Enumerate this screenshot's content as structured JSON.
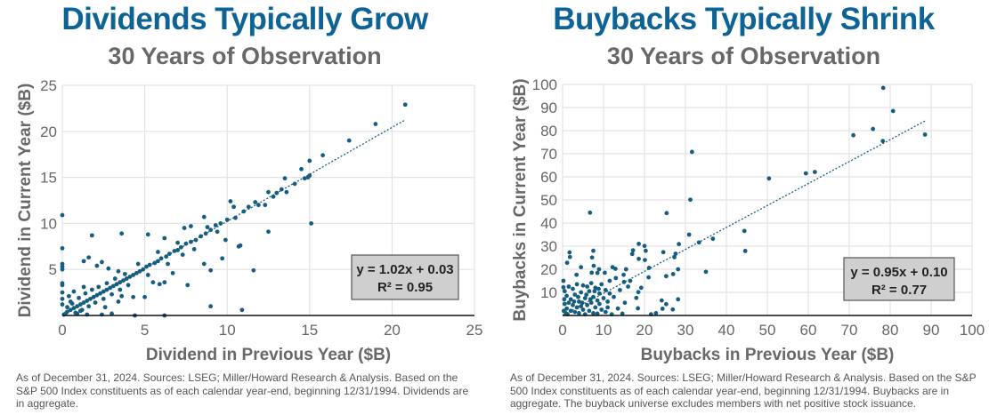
{
  "chart_data": [
    {
      "type": "scatter",
      "title": "Dividends Typically Grow",
      "subtitle": "30 Years of Observation",
      "xlabel": "Dividend in Previous Year ($B)",
      "ylabel": "Dividend in Current Year ($B)",
      "xlim": [
        0,
        25
      ],
      "ylim": [
        0,
        25
      ],
      "xticks": [
        "0",
        "5",
        "10",
        "15",
        "20",
        "25"
      ],
      "yticks": [
        "5",
        "10",
        "15",
        "20",
        "25"
      ],
      "grid": true,
      "marker_color": "#165e80",
      "trendline": {
        "slope": 1.02,
        "intercept": 0.03,
        "x_range": [
          0,
          20.8
        ],
        "style": "dotted"
      },
      "equation_label": "y = 1.02x + 0.03",
      "r2_label": "R² = 0.95",
      "points": [
        [
          20.8,
          22.9
        ],
        [
          19.0,
          20.8
        ],
        [
          17.4,
          19.0
        ],
        [
          15.8,
          17.4
        ],
        [
          15.0,
          16.8
        ],
        [
          14.5,
          15.9
        ],
        [
          15.1,
          10.0
        ],
        [
          12.5,
          9.1
        ],
        [
          11.6,
          4.9
        ],
        [
          10.9,
          0.6
        ],
        [
          9.0,
          1.0
        ],
        [
          9.0,
          4.9
        ],
        [
          8.6,
          5.6
        ],
        [
          9.7,
          6.2
        ],
        [
          10.7,
          7.5
        ],
        [
          10.8,
          7.6
        ],
        [
          9.9,
          8.2
        ],
        [
          8.6,
          10.7
        ],
        [
          10.2,
          12.4
        ],
        [
          10.4,
          11.8
        ],
        [
          0,
          10.9
        ],
        [
          0,
          7.3
        ],
        [
          0,
          5.6
        ],
        [
          0,
          5.3
        ],
        [
          0,
          5.0
        ],
        [
          0,
          3.5
        ],
        [
          0,
          3.3
        ],
        [
          0,
          2.5
        ],
        [
          0,
          1.8
        ],
        [
          0,
          1.2
        ],
        [
          1.8,
          8.7
        ],
        [
          3.6,
          8.9
        ],
        [
          5.2,
          8.8
        ],
        [
          6.2,
          8.4
        ],
        [
          1.6,
          6.3
        ],
        [
          1.3,
          5.9
        ],
        [
          2.4,
          5.8
        ],
        [
          2.1,
          5.4
        ],
        [
          2.8,
          5.1
        ],
        [
          3.4,
          4.8
        ],
        [
          7.6,
          3.3
        ],
        [
          6.7,
          4.6
        ],
        [
          4.4,
          0.0
        ],
        [
          6.2,
          0.0
        ],
        [
          3.0,
          0.2
        ],
        [
          2.4,
          0.1
        ],
        [
          1.5,
          0.1
        ],
        [
          4.3,
          2.0
        ],
        [
          5.0,
          2.0
        ],
        [
          5.5,
          3.6
        ],
        [
          5.9,
          3.4
        ],
        [
          6.2,
          3.6
        ],
        [
          7.8,
          9.7
        ],
        [
          7.4,
          9.5
        ],
        [
          11.7,
          12.3
        ],
        [
          12.3,
          12.0
        ],
        [
          12.5,
          13.4
        ],
        [
          13.3,
          13.7
        ],
        [
          13.5,
          14.9
        ],
        [
          13.6,
          13.4
        ],
        [
          14.1,
          14.3
        ],
        [
          14.7,
          14.9
        ],
        [
          15.0,
          15.2
        ],
        [
          14.9,
          15.0
        ],
        [
          13.0,
          13.3
        ],
        [
          12.8,
          12.9
        ],
        [
          11.9,
          12.0
        ],
        [
          11.3,
          11.8
        ],
        [
          11.0,
          11.3
        ],
        [
          10.5,
          10.6
        ],
        [
          10.0,
          10.4
        ],
        [
          9.6,
          10.0
        ],
        [
          9.3,
          9.8
        ],
        [
          9.0,
          9.3
        ],
        [
          8.7,
          8.9
        ],
        [
          8.4,
          8.6
        ],
        [
          8.1,
          8.2
        ],
        [
          7.8,
          8.0
        ],
        [
          7.5,
          7.8
        ],
        [
          7.2,
          7.4
        ],
        [
          7.0,
          7.1
        ],
        [
          6.8,
          7.0
        ],
        [
          6.5,
          6.7
        ],
        [
          6.3,
          6.4
        ],
        [
          6.0,
          6.2
        ],
        [
          5.8,
          5.9
        ],
        [
          5.6,
          5.7
        ],
        [
          5.3,
          5.5
        ],
        [
          5.1,
          5.3
        ],
        [
          4.9,
          5.0
        ],
        [
          4.7,
          4.8
        ],
        [
          4.5,
          4.6
        ],
        [
          4.3,
          4.4
        ],
        [
          4.1,
          4.2
        ],
        [
          3.9,
          4.0
        ],
        [
          3.7,
          3.8
        ],
        [
          3.5,
          3.6
        ],
        [
          3.3,
          3.4
        ],
        [
          3.1,
          3.2
        ],
        [
          2.9,
          3.0
        ],
        [
          2.7,
          2.8
        ],
        [
          2.5,
          2.6
        ],
        [
          2.3,
          2.4
        ],
        [
          2.1,
          2.2
        ],
        [
          1.9,
          2.0
        ],
        [
          1.7,
          1.8
        ],
        [
          1.5,
          1.6
        ],
        [
          1.3,
          1.4
        ],
        [
          1.1,
          1.2
        ],
        [
          0.9,
          1.0
        ],
        [
          0.7,
          0.8
        ],
        [
          0.5,
          0.6
        ],
        [
          0.3,
          0.4
        ],
        [
          0.2,
          0.2
        ],
        [
          0.1,
          0.1
        ],
        [
          0.6,
          1.3
        ],
        [
          0.8,
          0.3
        ],
        [
          1.0,
          1.9
        ],
        [
          1.2,
          0.6
        ],
        [
          1.4,
          2.4
        ],
        [
          1.6,
          1.0
        ],
        [
          1.8,
          2.8
        ],
        [
          2.0,
          1.4
        ],
        [
          2.2,
          3.1
        ],
        [
          2.5,
          1.8
        ],
        [
          2.7,
          3.5
        ],
        [
          3.0,
          2.3
        ],
        [
          3.2,
          4.0
        ],
        [
          3.5,
          2.8
        ],
        [
          3.8,
          4.5
        ],
        [
          4.0,
          3.3
        ],
        [
          4.6,
          5.6
        ],
        [
          5.2,
          4.4
        ],
        [
          5.8,
          6.9
        ],
        [
          6.4,
          5.6
        ],
        [
          7.0,
          7.9
        ],
        [
          7.3,
          6.6
        ],
        [
          8.0,
          7.2
        ],
        [
          8.8,
          9.6
        ],
        [
          9.4,
          9.1
        ],
        [
          0.4,
          2.1
        ],
        [
          0.5,
          1.5
        ],
        [
          0.3,
          0.9
        ],
        [
          0.9,
          0.2
        ],
        [
          1.1,
          0.5
        ],
        [
          0.7,
          2.6
        ],
        [
          1.3,
          3.1
        ],
        [
          2.6,
          0.9
        ],
        [
          3.4,
          1.5
        ],
        [
          3.6,
          2.1
        ]
      ]
    },
    {
      "type": "scatter",
      "title": "Buybacks Typically Shrink",
      "subtitle": "30 Years of Observation",
      "xlabel": "Buybacks in Previous Year ($B)",
      "ylabel": "Buybacks in Current Year ($B)",
      "xlim": [
        0,
        100
      ],
      "ylim": [
        0,
        100
      ],
      "xticks": [
        "0",
        "10",
        "20",
        "30",
        "40",
        "50",
        "60",
        "70",
        "80",
        "90",
        "100"
      ],
      "yticks": [
        "10",
        "20",
        "30",
        "40",
        "50",
        "60",
        "70",
        "80",
        "90",
        "100"
      ],
      "grid": true,
      "marker_color": "#165e80",
      "trendline": {
        "slope": 0.95,
        "intercept": 0.1,
        "x_range": [
          0,
          88.5
        ],
        "style": "dotted"
      },
      "equation_label": "y = 0.95x + 0.10",
      "r2_label": "R² = 0.77",
      "points": [
        [
          78.3,
          98.5
        ],
        [
          80.7,
          88.5
        ],
        [
          75.8,
          80.7
        ],
        [
          71.0,
          78.0
        ],
        [
          78.2,
          75.5
        ],
        [
          88.5,
          78.3
        ],
        [
          59.4,
          61.5
        ],
        [
          61.6,
          62.1
        ],
        [
          50.4,
          59.3
        ],
        [
          31.6,
          70.8
        ],
        [
          31.2,
          50.1
        ],
        [
          25.4,
          44.3
        ],
        [
          6.7,
          44.5
        ],
        [
          44.4,
          36.6
        ],
        [
          44.6,
          27.9
        ],
        [
          36.7,
          33.2
        ],
        [
          33.3,
          31.6
        ],
        [
          30.9,
          35.0
        ],
        [
          28.4,
          30.9
        ],
        [
          35.0,
          18.9
        ],
        [
          28.2,
          20.0
        ],
        [
          27.6,
          26.7
        ],
        [
          27.3,
          25.2
        ],
        [
          24.6,
          27.4
        ],
        [
          25.3,
          17.0
        ],
        [
          27.0,
          17.9
        ],
        [
          28.2,
          7.0
        ],
        [
          24.2,
          6.5
        ],
        [
          25.3,
          4.9
        ],
        [
          26.9,
          2.6
        ],
        [
          24.4,
          2.9
        ],
        [
          22.8,
          1.0
        ],
        [
          21.6,
          0.5
        ],
        [
          18.6,
          31.0
        ],
        [
          20.0,
          30.1
        ],
        [
          20.3,
          28.0
        ],
        [
          17.2,
          28.2
        ],
        [
          17.0,
          26.6
        ],
        [
          18.6,
          24.5
        ],
        [
          20.1,
          24.0
        ],
        [
          21.1,
          20.6
        ],
        [
          21.0,
          16.5
        ],
        [
          19.2,
          12.0
        ],
        [
          18.5,
          10.1
        ],
        [
          18.0,
          7.6
        ],
        [
          18.4,
          3.1
        ],
        [
          7.5,
          28.0
        ],
        [
          1.7,
          27.3
        ],
        [
          1.8,
          25.3
        ],
        [
          1.1,
          22.8
        ],
        [
          7.2,
          25.1
        ],
        [
          7.6,
          21.5
        ],
        [
          4.5,
          20.9
        ],
        [
          3.4,
          17.6
        ],
        [
          7.1,
          18.5
        ],
        [
          8.9,
          20.0
        ],
        [
          8.5,
          18.4
        ],
        [
          10.3,
          18.5
        ],
        [
          12.2,
          20.9
        ],
        [
          12.9,
          20.2
        ],
        [
          15.5,
          20.0
        ],
        [
          14.9,
          17.6
        ],
        [
          0.2,
          15.0
        ],
        [
          0.2,
          12.2
        ],
        [
          16.5,
          15.0
        ],
        [
          15.0,
          14.5
        ],
        [
          13.0,
          16.2
        ],
        [
          11.5,
          15.0
        ],
        [
          14.0,
          11.0
        ],
        [
          16.0,
          12.5
        ],
        [
          12.5,
          8.0
        ],
        [
          15.2,
          5.5
        ],
        [
          13.5,
          3.0
        ],
        [
          12.0,
          0.5
        ],
        [
          14.6,
          0.8
        ],
        [
          9.5,
          13.5
        ],
        [
          10.5,
          11.0
        ],
        [
          11.0,
          6.0
        ],
        [
          9.0,
          9.5
        ],
        [
          8.0,
          12.0
        ],
        [
          8.5,
          6.5
        ],
        [
          7.0,
          14.0
        ],
        [
          6.5,
          10.5
        ],
        [
          7.5,
          8.0
        ],
        [
          6.0,
          12.5
        ],
        [
          5.5,
          7.5
        ],
        [
          5.0,
          13.0
        ],
        [
          4.5,
          10.0
        ],
        [
          4.0,
          6.0
        ],
        [
          3.5,
          13.5
        ],
        [
          3.0,
          9.0
        ],
        [
          2.5,
          11.5
        ],
        [
          2.0,
          7.0
        ],
        [
          1.5,
          12.5
        ],
        [
          1.0,
          8.5
        ],
        [
          0.5,
          10.5
        ],
        [
          0.5,
          5.0
        ],
        [
          1.0,
          3.0
        ],
        [
          1.5,
          5.5
        ],
        [
          2.0,
          2.0
        ],
        [
          2.5,
          4.5
        ],
        [
          3.0,
          1.5
        ],
        [
          3.5,
          3.5
        ],
        [
          4.0,
          1.0
        ],
        [
          4.5,
          4.0
        ],
        [
          5.0,
          2.5
        ],
        [
          5.5,
          0.5
        ],
        [
          6.0,
          4.5
        ],
        [
          6.5,
          2.0
        ],
        [
          7.0,
          5.5
        ],
        [
          7.5,
          1.0
        ],
        [
          8.0,
          3.5
        ],
        [
          8.5,
          0.8
        ],
        [
          9.0,
          5.0
        ],
        [
          9.5,
          2.5
        ],
        [
          10.0,
          7.5
        ],
        [
          10.5,
          1.5
        ],
        [
          11.0,
          3.5
        ],
        [
          11.5,
          9.5
        ],
        [
          0.3,
          2.0
        ],
        [
          0.8,
          1.0
        ],
        [
          1.2,
          0.5
        ],
        [
          0.4,
          7.0
        ],
        [
          2.8,
          6.0
        ],
        [
          3.8,
          8.0
        ],
        [
          4.8,
          5.5
        ],
        [
          5.8,
          9.0
        ],
        [
          6.8,
          7.0
        ],
        [
          7.8,
          10.5
        ],
        [
          8.8,
          11.5
        ]
      ]
    }
  ],
  "footnotes": [
    "As of December 31, 2024. Sources: LSEG; Miller/Howard Research & Analysis. Based on the S&P 500 Index constituents as of each calendar year-end, beginning 12/31/1994. Dividends are in aggregate.",
    "As of December 31, 2024. Sources: LSEG; Miller/Howard Research & Analysis. Based on the S&P 500 Index constituents as of each calendar year-end, beginning 12/31/1994. Buybacks are in aggregate. The buyback universe excludes members with net positive stock issuance."
  ]
}
